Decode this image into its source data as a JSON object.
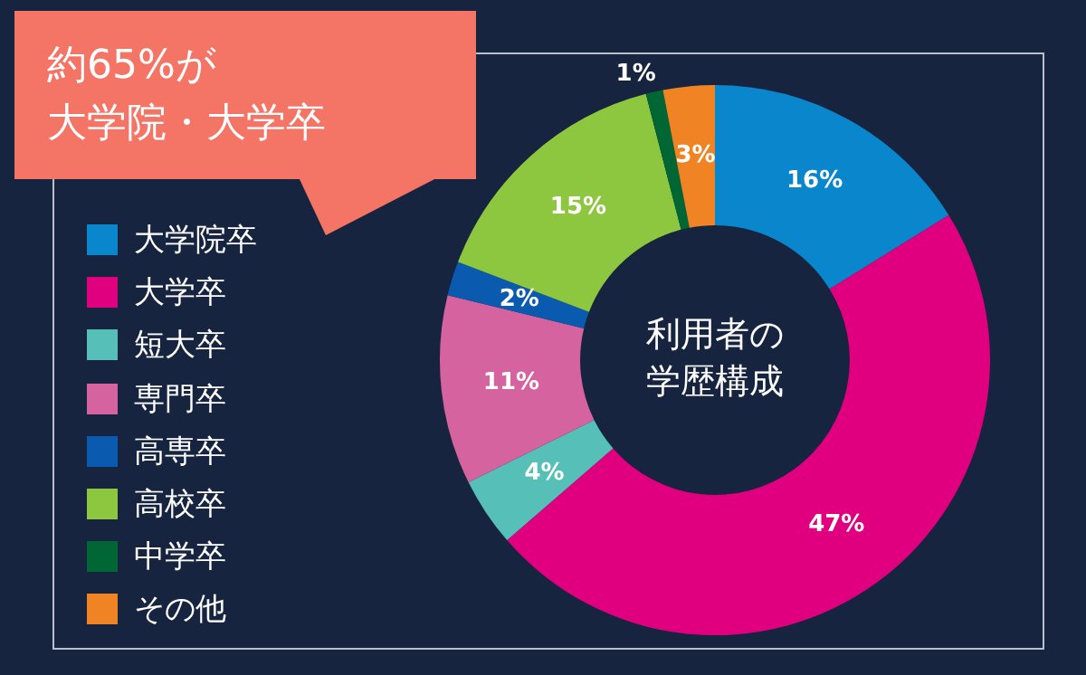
{
  "chart_data": {
    "type": "donut",
    "title": "利用者の学歴構成",
    "categories": [
      "大学院卒",
      "大学卒",
      "短大卒",
      "専門卒",
      "高専卒",
      "高校卒",
      "中学卒",
      "その他"
    ],
    "values": [
      16,
      47,
      4,
      11,
      2,
      15,
      1,
      3
    ],
    "value_labels": [
      "16%",
      "47%",
      "4%",
      "11%",
      "2%",
      "15%",
      "1%",
      "3%"
    ],
    "colors": [
      "#0a86cc",
      "#e0007f",
      "#56bfb8",
      "#d563a0",
      "#0a5bb0",
      "#8dc63f",
      "#006633",
      "#f08424"
    ],
    "legend": "left",
    "annotations": [
      "約65%が",
      "大学院・大学卒"
    ]
  }
}
